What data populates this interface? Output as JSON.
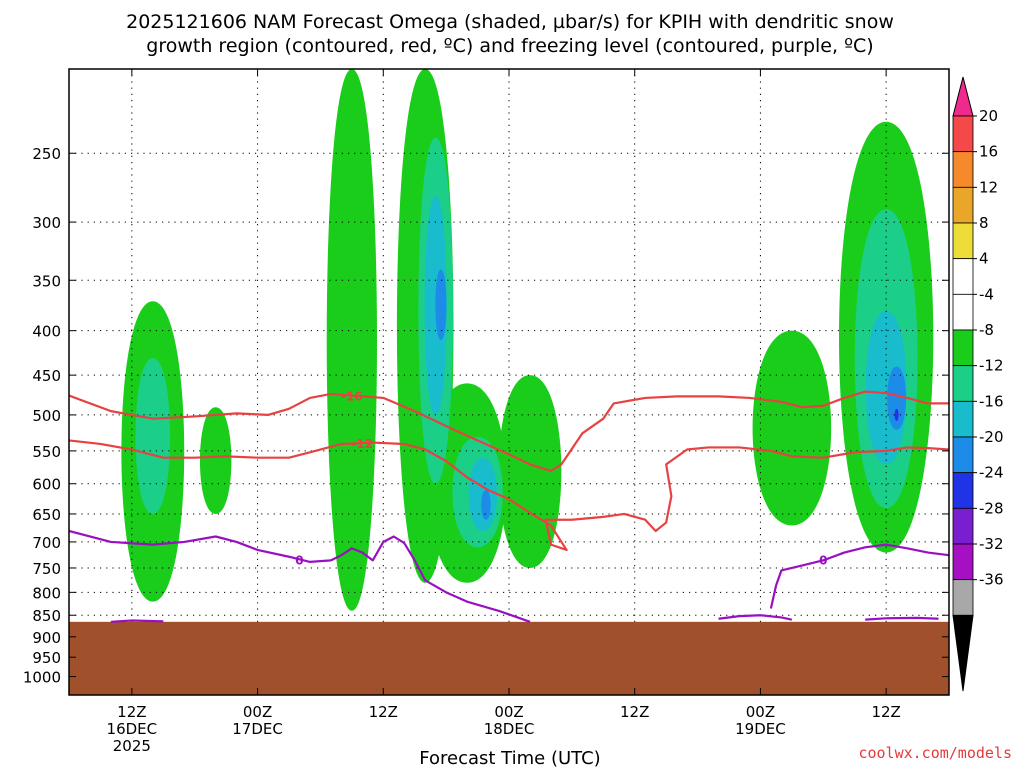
{
  "chart_data": {
    "type": "heatmap",
    "title_lines": [
      "2025121606 NAM Forecast Omega (shaded, µbar/s) for KPIH with dendritic snow",
      "growth region (contoured, red, ºC) and freezing level (contoured, purple, ºC)"
    ],
    "xlabel": "Forecast Time (UTC)",
    "credit": "coolwx.com/models",
    "x_range_hours": [
      6,
      90
    ],
    "x_ticks": [
      {
        "hour": 12,
        "lines": [
          "12Z",
          "16DEC",
          "2025"
        ]
      },
      {
        "hour": 24,
        "lines": [
          "00Z",
          "17DEC"
        ]
      },
      {
        "hour": 36,
        "lines": [
          "12Z"
        ]
      },
      {
        "hour": 48,
        "lines": [
          "00Z",
          "18DEC"
        ]
      },
      {
        "hour": 60,
        "lines": [
          "12Z"
        ]
      },
      {
        "hour": 72,
        "lines": [
          "00Z",
          "19DEC"
        ]
      },
      {
        "hour": 84,
        "lines": [
          "12Z"
        ]
      }
    ],
    "y_axis": {
      "type": "log-pressure",
      "unit": "hPa",
      "inverted": true,
      "range": [
        1050,
        200
      ],
      "ticks": [
        250,
        300,
        350,
        400,
        450,
        500,
        550,
        600,
        650,
        700,
        750,
        800,
        850,
        900,
        950,
        1000
      ]
    },
    "grid": true,
    "colorbar": {
      "labels": [
        "20",
        "16",
        "12",
        "8",
        "4",
        "-4",
        "-8",
        "-12",
        "-16",
        "-20",
        "-24",
        "-28",
        "-32",
        "-36"
      ],
      "colors": [
        "#ee2a5f",
        "#f54848",
        "#f58a2d",
        "#e9a628",
        "#eedd38",
        "#ffffff",
        "#ffffff",
        "#1bcd1b",
        "#1bcf88",
        "#18bccd",
        "#1d8be8",
        "#2133e6",
        "#7a1fd0",
        "#a410c2",
        "#a8a8a8",
        "#000000"
      ],
      "top_arrow_color": "#ee2a8f",
      "bottom_arrow_color": "#000000"
    },
    "omega_shaded": [
      {
        "level": "-4 to -8",
        "color": "#1bcd1b",
        "x_center": 14,
        "p_center": 600,
        "dx": 4.0,
        "dp_up": 230,
        "dp_down": 220
      },
      {
        "level": "-4 to -8",
        "color": "#1bcd1b",
        "x_center": 20,
        "p_center": 560,
        "dx": 2.0,
        "dp_up": 70,
        "dp_down": 90
      },
      {
        "level": "-4 to -8",
        "color": "#1bcd1b",
        "x_center": 33,
        "p_center": 480,
        "dx": 3.2,
        "dp_up": 300,
        "dp_down": 360
      },
      {
        "level": "-4 to -8",
        "color": "#1bcd1b",
        "x_center": 40,
        "p_center": 350,
        "dx": 3.6,
        "dp_up": 150,
        "dp_down": 430
      },
      {
        "level": "-4 to -8",
        "color": "#1bcd1b",
        "x_center": 44,
        "p_center": 640,
        "dx": 5.0,
        "dp_up": 180,
        "dp_down": 140
      },
      {
        "level": "-4 to -8",
        "color": "#1bcd1b",
        "x_center": 50,
        "p_center": 600,
        "dx": 4.0,
        "dp_up": 150,
        "dp_down": 150
      },
      {
        "level": "-4 to -8",
        "color": "#1bcd1b",
        "x_center": 75,
        "p_center": 520,
        "dx": 5.0,
        "dp_up": 120,
        "dp_down": 150
      },
      {
        "level": "-4 to -8",
        "color": "#1bcd1b",
        "x_center": 84,
        "p_center": 420,
        "dx": 6.0,
        "dp_up": 190,
        "dp_down": 300
      },
      {
        "level": "-8 to -12",
        "color": "#1bcf88",
        "x_center": 14,
        "p_center": 540,
        "dx": 2.2,
        "dp_up": 110,
        "dp_down": 110
      },
      {
        "level": "-8 to -12",
        "color": "#1bcf88",
        "x_center": 41,
        "p_center": 400,
        "dx": 2.2,
        "dp_up": 160,
        "dp_down": 200
      },
      {
        "level": "-8 to -12",
        "color": "#1bcf88",
        "x_center": 45,
        "p_center": 620,
        "dx": 3.2,
        "dp_up": 90,
        "dp_down": 90
      },
      {
        "level": "-8 to -12",
        "color": "#1bcf88",
        "x_center": 84,
        "p_center": 440,
        "dx": 4.0,
        "dp_up": 150,
        "dp_down": 200
      },
      {
        "level": "-12 to -16",
        "color": "#18bccd",
        "x_center": 41,
        "p_center": 380,
        "dx": 1.4,
        "dp_up": 100,
        "dp_down": 120
      },
      {
        "level": "-12 to -16",
        "color": "#18bccd",
        "x_center": 45.5,
        "p_center": 620,
        "dx": 1.8,
        "dp_up": 60,
        "dp_down": 60
      },
      {
        "level": "-12 to -16",
        "color": "#18bccd",
        "x_center": 84,
        "p_center": 470,
        "dx": 2.6,
        "dp_up": 90,
        "dp_down": 100
      },
      {
        "level": "-16 to -20",
        "color": "#1d8be8",
        "x_center": 41.5,
        "p_center": 370,
        "dx": 0.7,
        "dp_up": 30,
        "dp_down": 40
      },
      {
        "level": "-16 to -20",
        "color": "#1d8be8",
        "x_center": 45.8,
        "p_center": 630,
        "dx": 0.6,
        "dp_up": 20,
        "dp_down": 30
      },
      {
        "level": "-16 to -20",
        "color": "#1d8be8",
        "x_center": 85,
        "p_center": 480,
        "dx": 1.2,
        "dp_up": 40,
        "dp_down": 40
      },
      {
        "level": "-20 to -24",
        "color": "#2133e6",
        "x_center": 85,
        "p_center": 500,
        "dx": 0.25,
        "dp_up": 8,
        "dp_down": 8
      }
    ],
    "terrain": {
      "color": "#a0512b",
      "surface_pressure_hpa": 865
    },
    "dendritic_contours": [
      {
        "label": "-16",
        "color": "#e84141",
        "points": [
          [
            6,
            475
          ],
          [
            10,
            495
          ],
          [
            14,
            505
          ],
          [
            18,
            502
          ],
          [
            22,
            498
          ],
          [
            25,
            500
          ],
          [
            27,
            492
          ],
          [
            29,
            478
          ],
          [
            31,
            473
          ],
          [
            34,
            476
          ],
          [
            36,
            478
          ],
          [
            39,
            495
          ],
          [
            42,
            515
          ],
          [
            45,
            535
          ],
          [
            48,
            555
          ],
          [
            50,
            570
          ],
          [
            52,
            580
          ],
          [
            53,
            570
          ],
          [
            55,
            525
          ],
          [
            57,
            505
          ],
          [
            58,
            485
          ],
          [
            61,
            478
          ],
          [
            64,
            476
          ],
          [
            68,
            476
          ],
          [
            71,
            478
          ],
          [
            74,
            483
          ],
          [
            76,
            490
          ],
          [
            78,
            488
          ],
          [
            80,
            478
          ],
          [
            82,
            470
          ],
          [
            84,
            472
          ],
          [
            86,
            478
          ],
          [
            88,
            485
          ],
          [
            90,
            485
          ]
        ],
        "label_at": [
          33,
          476
        ]
      },
      {
        "label": "-12",
        "color": "#e84141",
        "points": [
          [
            6,
            535
          ],
          [
            9,
            540
          ],
          [
            12,
            548
          ],
          [
            15,
            560
          ],
          [
            18,
            560
          ],
          [
            21,
            558
          ],
          [
            24,
            560
          ],
          [
            27,
            560
          ],
          [
            29,
            552
          ],
          [
            32,
            540
          ],
          [
            35,
            538
          ],
          [
            38,
            540
          ],
          [
            40,
            548
          ],
          [
            42,
            565
          ],
          [
            44,
            590
          ],
          [
            46,
            610
          ],
          [
            48,
            625
          ],
          [
            50,
            648
          ],
          [
            52,
            670
          ],
          [
            53,
            700
          ],
          [
            53.5,
            715
          ],
          [
            52,
            705
          ],
          [
            51.5,
            660
          ],
          [
            54,
            660
          ],
          [
            57,
            655
          ],
          [
            59,
            650
          ],
          [
            61,
            660
          ],
          [
            62,
            680
          ],
          [
            63,
            665
          ],
          [
            63.5,
            620
          ],
          [
            63,
            570
          ],
          [
            65,
            548
          ],
          [
            67,
            545
          ],
          [
            70,
            545
          ],
          [
            73,
            550
          ],
          [
            75,
            558
          ],
          [
            78,
            560
          ],
          [
            81,
            552
          ],
          [
            84,
            550
          ],
          [
            86,
            545
          ],
          [
            88,
            546
          ],
          [
            90,
            548
          ]
        ],
        "label_at": [
          34,
          540
        ]
      }
    ],
    "freezing_contours": [
      {
        "label": "0",
        "color": "#9910c2",
        "points": [
          [
            6,
            680
          ],
          [
            10,
            700
          ],
          [
            14,
            705
          ],
          [
            17,
            700
          ],
          [
            20,
            690
          ],
          [
            22,
            700
          ],
          [
            24,
            715
          ],
          [
            27,
            728
          ],
          [
            29,
            738
          ],
          [
            31,
            735
          ],
          [
            32,
            725
          ],
          [
            33,
            712
          ],
          [
            34,
            720
          ],
          [
            35,
            735
          ],
          [
            36,
            700
          ],
          [
            37,
            690
          ],
          [
            38,
            702
          ],
          [
            39,
            735
          ],
          [
            40,
            775
          ],
          [
            42,
            800
          ],
          [
            44,
            820
          ],
          [
            47,
            840
          ],
          [
            50,
            865
          ]
        ],
        "label_at": [
          28,
          735
        ]
      },
      {
        "label": "0",
        "color": "#9910c2",
        "points": [
          [
            73,
            835
          ],
          [
            73.5,
            785
          ],
          [
            74,
            755
          ],
          [
            76,
            745
          ],
          [
            78,
            735
          ],
          [
            80,
            720
          ],
          [
            82,
            710
          ],
          [
            84,
            705
          ],
          [
            86,
            712
          ],
          [
            88,
            720
          ],
          [
            90,
            725
          ]
        ],
        "label_at": [
          78,
          735
        ]
      },
      {
        "label": "",
        "color": "#9910c2",
        "points": [
          [
            10,
            865
          ],
          [
            12,
            862
          ],
          [
            15,
            864
          ]
        ],
        "label_at": null
      },
      {
        "label": "",
        "color": "#9910c2",
        "points": [
          [
            68,
            858
          ],
          [
            70,
            852
          ],
          [
            72,
            850
          ],
          [
            74,
            855
          ],
          [
            75,
            860
          ]
        ],
        "label_at": null
      },
      {
        "label": "",
        "color": "#9910c2",
        "points": [
          [
            82,
            860
          ],
          [
            84,
            857
          ],
          [
            87,
            856
          ],
          [
            89,
            858
          ]
        ],
        "label_at": null
      }
    ]
  }
}
